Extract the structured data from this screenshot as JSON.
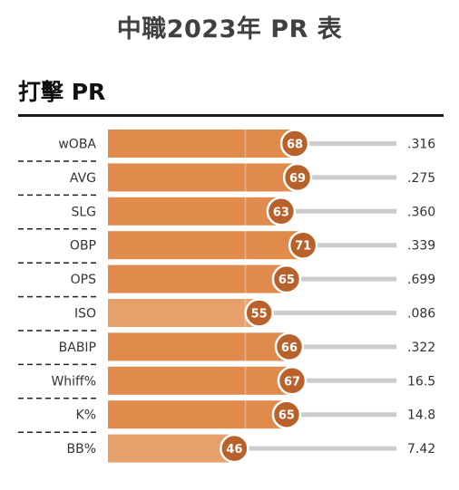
{
  "page": {
    "title": "中職2023年 PR 表",
    "section": "打擊 PR"
  },
  "colors": {
    "bar": "#E08A4C",
    "bar_light": "#E8A06B",
    "badge": "#B9612B",
    "track": "#CCCCCC",
    "rule": "#1a1a1a"
  },
  "chart_data": {
    "type": "bar",
    "orientation": "horizontal",
    "title": "打擊 PR",
    "xlim": [
      0,
      100
    ],
    "categories": [
      "wOBA",
      "AVG",
      "SLG",
      "OBP",
      "OPS",
      "ISO",
      "BABIP",
      "Whiff%",
      "K%",
      "BB%"
    ],
    "values": [
      68,
      69,
      63,
      71,
      65,
      55,
      66,
      67,
      65,
      46
    ],
    "stat_values": [
      ".316",
      ".275",
      ".360",
      ".339",
      ".699",
      ".086",
      ".322",
      "16.5",
      "14.8",
      "7.42"
    ],
    "grid": true
  }
}
